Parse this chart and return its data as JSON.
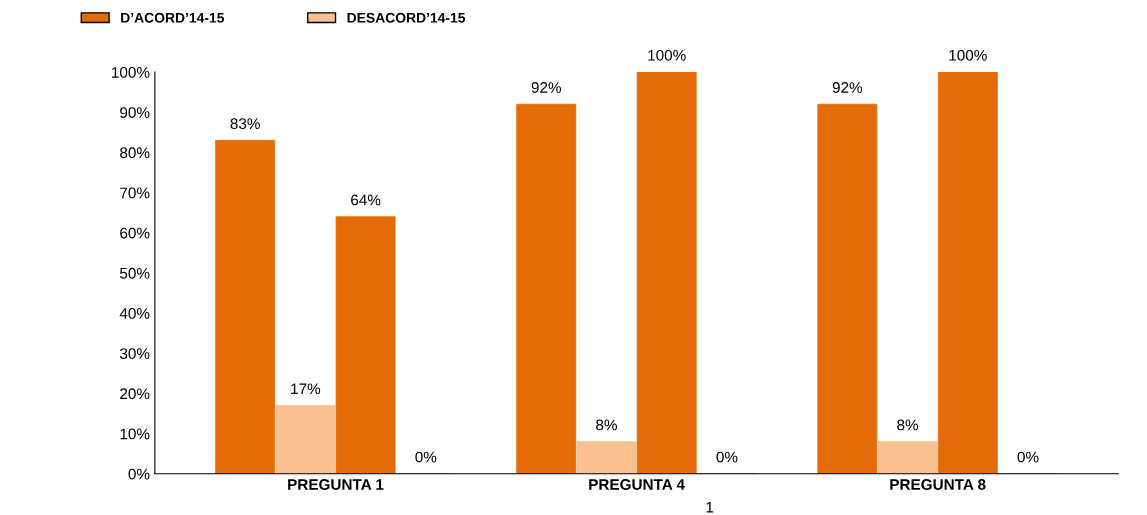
{
  "chart_data": {
    "type": "bar",
    "categories": [
      "PREGUNTA 1",
      "PREGUNTA 4",
      "PREGUNTA 8"
    ],
    "series": [
      {
        "name": "D’ACORD’14-15",
        "color": "#e36c09",
        "values": [
          83,
          92,
          92
        ]
      },
      {
        "name": "DESACORD’14-15",
        "color": "#fac090",
        "values": [
          17,
          8,
          8
        ]
      },
      {
        "color": "#e36c09",
        "values": [
          64,
          100,
          100
        ]
      },
      {
        "color": "#c0956f",
        "values": [
          0,
          0,
          0
        ]
      }
    ],
    "ylim": [
      0,
      100
    ],
    "yticks": [
      {
        "value": 0,
        "label": "0%"
      },
      {
        "value": 10,
        "label": "10%"
      },
      {
        "value": 20,
        "label": "20%"
      },
      {
        "value": 30,
        "label": "30%"
      },
      {
        "value": 40,
        "label": "40%"
      },
      {
        "value": 50,
        "label": "50%"
      },
      {
        "value": 60,
        "label": "60%"
      },
      {
        "value": 70,
        "label": "70%"
      },
      {
        "value": 80,
        "label": "80%"
      },
      {
        "value": 90,
        "label": "90%"
      },
      {
        "value": 100,
        "label": "100%"
      }
    ],
    "value_labels": [
      [
        "83%",
        "92%",
        "92%"
      ],
      [
        "17%",
        "8%",
        "8%"
      ],
      [
        "64%",
        "100%",
        "100%"
      ],
      [
        "0%",
        "0%",
        "0%"
      ]
    ],
    "annotations": [
      "1"
    ],
    "grid": false,
    "legend": "top left"
  }
}
